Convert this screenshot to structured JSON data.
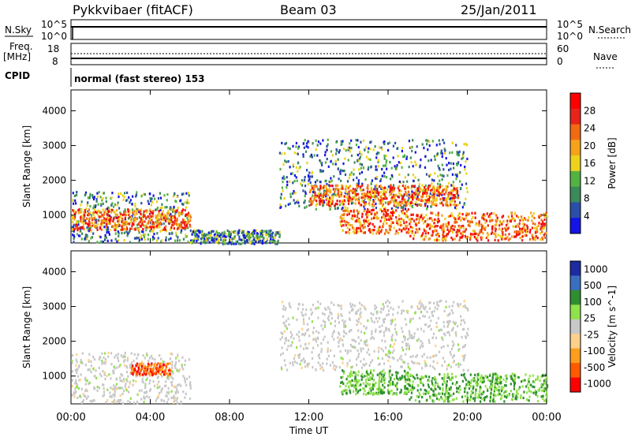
{
  "header": {
    "station": "Pykkvibaer (fitACF)",
    "beam": "Beam 03",
    "date": "25/Jan/2011"
  },
  "strips": {
    "nsky": {
      "label": "N.Sky",
      "tick_hi": "10^5",
      "tick_lo": "10^0"
    },
    "nsearch": {
      "label": "N.Search",
      "tick_hi": "10^5",
      "tick_lo": "10^0"
    },
    "freq": {
      "label_1": "Freq.",
      "label_2": "[MHz]",
      "tick_hi": "18",
      "tick_lo": "8"
    },
    "nave": {
      "label": "Nave",
      "tick_hi": "60",
      "tick_lo": "0"
    },
    "cpid": {
      "label": "CPID",
      "value": "normal (fast stereo) 153"
    }
  },
  "colors": {
    "power_scale": [
      "#1414e6",
      "#2b4fa8",
      "#3b8a5a",
      "#52b342",
      "#ecd21c",
      "#f4a31a",
      "#f36a12",
      "#e8231a",
      "#ff0000"
    ],
    "velocity_scale": [
      "#ff0000",
      "#ff5a00",
      "#ff9d1c",
      "#ffd08a",
      "#c8c8c8",
      "#8fe24a",
      "#2f8f2f",
      "#3a6fc0",
      "#1e2aa0"
    ]
  },
  "chart_data": [
    {
      "type": "heatmap",
      "name": "power-panel",
      "ylabel": "Slant Range [km]",
      "xlabel": "Time UT",
      "x_ticks": [
        "00:00",
        "04:00",
        "08:00",
        "12:00",
        "16:00",
        "20:00",
        "00:00"
      ],
      "y_ticks": [
        "1000",
        "2000",
        "3000",
        "4000"
      ],
      "ylim": [
        200,
        4600
      ],
      "xlim_hours": [
        0,
        24
      ],
      "colorbar": {
        "label": "Power [dB]",
        "ticks": [
          "4",
          "8",
          "12",
          "16",
          "20",
          "24",
          "28"
        ],
        "range": [
          0,
          32
        ]
      },
      "regions": [
        {
          "t0": 0.0,
          "t1": 6.0,
          "r0": 250,
          "r1": 1700,
          "level": "medium"
        },
        {
          "t0": 0.0,
          "t1": 6.0,
          "r0": 600,
          "r1": 1200,
          "level": "high"
        },
        {
          "t0": 6.0,
          "t1": 10.5,
          "r0": 200,
          "r1": 600,
          "level": "medium"
        },
        {
          "t0": 10.5,
          "t1": 20.0,
          "r0": 1200,
          "r1": 3200,
          "level": "medium"
        },
        {
          "t0": 12.0,
          "t1": 19.5,
          "r0": 1300,
          "r1": 1900,
          "level": "high"
        },
        {
          "t0": 13.5,
          "t1": 17.0,
          "r0": 500,
          "r1": 1200,
          "level": "high"
        },
        {
          "t0": 17.0,
          "t1": 24.0,
          "r0": 300,
          "r1": 1100,
          "level": "high"
        }
      ]
    },
    {
      "type": "heatmap",
      "name": "velocity-panel",
      "ylabel": "Slant Range [km]",
      "xlabel": "Time UT",
      "x_ticks": [
        "00:00",
        "04:00",
        "08:00",
        "12:00",
        "16:00",
        "20:00",
        "00:00"
      ],
      "y_ticks": [
        "1000",
        "2000",
        "3000",
        "4000"
      ],
      "ylim": [
        200,
        4600
      ],
      "xlim_hours": [
        0,
        24
      ],
      "colorbar": {
        "label": "Velocity [m s^-1]",
        "ticks": [
          "1000",
          "500",
          "100",
          "25",
          "-25",
          "-100",
          "-500",
          "-1000"
        ]
      },
      "regions": [
        {
          "t0": 0.0,
          "t1": 6.0,
          "r0": 250,
          "r1": 1700,
          "level": "grey"
        },
        {
          "t0": 3.0,
          "t1": 5.0,
          "r0": 1050,
          "r1": 1400,
          "level": "negative"
        },
        {
          "t0": 10.5,
          "t1": 20.0,
          "r0": 1200,
          "r1": 3200,
          "level": "grey"
        },
        {
          "t0": 13.5,
          "t1": 17.0,
          "r0": 500,
          "r1": 1200,
          "level": "positive"
        },
        {
          "t0": 17.0,
          "t1": 24.0,
          "r0": 300,
          "r1": 1100,
          "level": "positive"
        }
      ]
    }
  ]
}
